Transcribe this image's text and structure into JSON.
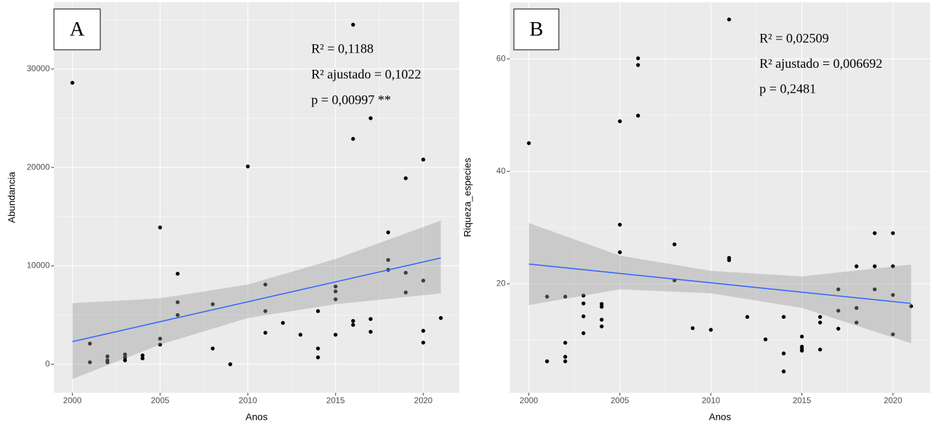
{
  "chart_data": [
    {
      "type": "scatter",
      "panel_label": "A",
      "x_label": "Anos",
      "y_label": "Abundancia",
      "annotations": [
        "R² = 0,1188",
        "R² ajustado = 0,1022",
        "p = 0,00997 **"
      ],
      "xlim": [
        1998.95,
        2022.05
      ],
      "xticks": [
        2000,
        2005,
        2010,
        2015,
        2020
      ],
      "ylim": [
        -2900,
        36800
      ],
      "yticks": [
        0,
        10000,
        20000,
        30000
      ],
      "grid": true,
      "points": {
        "color": "#000000",
        "x": [
          2000,
          2001,
          2001,
          2002,
          2002,
          2002,
          2003,
          2003,
          2003,
          2004,
          2004,
          2005,
          2005,
          2005,
          2006,
          2006,
          2006,
          2008,
          2008,
          2009,
          2010,
          2011,
          2011,
          2011,
          2012,
          2013,
          2014,
          2014,
          2014,
          2015,
          2015,
          2015,
          2015,
          2016,
          2016,
          2016,
          2016,
          2017,
          2017,
          2017,
          2018,
          2018,
          2018,
          2019,
          2019,
          2019,
          2020,
          2020,
          2020,
          2020,
          2021
        ],
        "y": [
          28600,
          2100,
          200,
          800,
          400,
          200,
          1000,
          700,
          400,
          900,
          600,
          13900,
          2600,
          2000,
          9200,
          6300,
          5000,
          6100,
          1600,
          0,
          20100,
          8100,
          5400,
          3200,
          4200,
          3000,
          5400,
          1600,
          700,
          7900,
          7400,
          6600,
          3000,
          34500,
          22900,
          4400,
          4000,
          25000,
          4600,
          3300,
          13400,
          10600,
          9600,
          18900,
          9300,
          7300,
          20800,
          8500,
          3400,
          2200,
          4700
        ]
      },
      "fit": {
        "color": "#3366ff",
        "x": [
          2000,
          2021
        ],
        "y": [
          2300,
          10800
        ]
      },
      "band": {
        "color": "#999999",
        "x": [
          2000,
          2005,
          2010,
          2015,
          2021
        ],
        "lower": [
          -1500,
          2000,
          4700,
          6100,
          7200
        ],
        "upper": [
          6200,
          6700,
          8100,
          10700,
          14600
        ]
      }
    },
    {
      "type": "scatter",
      "panel_label": "B",
      "x_label": "Anos",
      "y_label": "Riqueza_especies",
      "annotations": [
        "R² = 0,02509",
        "R² ajustado = 0,006692",
        "p = 0,2481"
      ],
      "xlim": [
        1998.95,
        2022.05
      ],
      "xticks": [
        2000,
        2005,
        2010,
        2015,
        2020
      ],
      "ylim": [
        0.6,
        70.1
      ],
      "yticks": [
        20,
        40,
        60
      ],
      "grid": true,
      "points": {
        "color": "#000000",
        "x": [
          2000,
          2001,
          2001,
          2002,
          2002,
          2002,
          2002,
          2003,
          2003,
          2003,
          2003,
          2004,
          2004,
          2004,
          2004,
          2005,
          2005,
          2005,
          2006,
          2006,
          2006,
          2008,
          2008,
          2009,
          2010,
          2011,
          2011,
          2011,
          2012,
          2013,
          2014,
          2014,
          2014,
          2015,
          2015,
          2015,
          2015,
          2016,
          2016,
          2016,
          2017,
          2017,
          2017,
          2018,
          2018,
          2018,
          2019,
          2019,
          2019,
          2020,
          2020,
          2020,
          2020,
          2021
        ],
        "y": [
          45,
          17.7,
          6.2,
          17.7,
          9.5,
          7,
          6.2,
          17.9,
          16.5,
          14.2,
          11.2,
          16.4,
          15.9,
          13.6,
          12.4,
          48.9,
          30.5,
          25.6,
          60.1,
          58.9,
          49.9,
          27,
          20.6,
          12.1,
          11.8,
          67,
          24.6,
          24.2,
          14.1,
          10.1,
          14.1,
          7.6,
          4.4,
          10.6,
          8.8,
          8.4,
          8.1,
          14.1,
          13.1,
          8.3,
          19,
          15.2,
          12,
          23.1,
          15.7,
          13.1,
          29,
          23.1,
          19,
          29,
          23.1,
          18,
          11,
          16
        ]
      },
      "fit": {
        "color": "#3366ff",
        "x": [
          2000,
          2021
        ],
        "y": [
          23.5,
          16.5
        ]
      },
      "band": {
        "color": "#999999",
        "x": [
          2000,
          2005,
          2010,
          2015,
          2021
        ],
        "lower": [
          16.2,
          19.0,
          18.3,
          15.7,
          9.4
        ],
        "upper": [
          30.8,
          25.0,
          22.3,
          21.3,
          23.4
        ]
      }
    }
  ]
}
